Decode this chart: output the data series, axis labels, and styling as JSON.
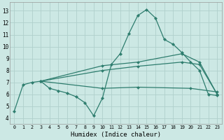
{
  "bg_color": "#cce8e4",
  "grid_color": "#b0d0cc",
  "line_color": "#2e7d6e",
  "xlabel": "Humidex (Indice chaleur)",
  "ylim": [
    3.5,
    13.7
  ],
  "xlim": [
    -0.5,
    23.5
  ],
  "yticks": [
    4,
    5,
    6,
    7,
    8,
    9,
    10,
    11,
    12,
    13
  ],
  "xticks": [
    0,
    1,
    2,
    3,
    4,
    5,
    6,
    7,
    8,
    9,
    10,
    11,
    12,
    13,
    14,
    15,
    16,
    17,
    18,
    19,
    20,
    21,
    22,
    23
  ],
  "lines": [
    {
      "x": [
        0,
        1,
        2,
        3,
        4,
        5,
        6,
        7,
        8,
        9,
        10,
        11,
        12,
        13,
        14,
        15,
        16,
        17,
        18,
        19,
        20,
        21,
        22,
        23
      ],
      "y": [
        4.6,
        6.8,
        7.0,
        7.1,
        6.5,
        6.3,
        6.1,
        5.8,
        5.3,
        4.2,
        5.7,
        8.5,
        9.4,
        11.1,
        12.6,
        13.1,
        12.4,
        10.6,
        10.2,
        9.5,
        8.7,
        8.0,
        6.0,
        5.9
      ]
    },
    {
      "x": [
        3,
        10,
        14,
        19,
        21,
        23
      ],
      "y": [
        7.1,
        8.4,
        8.7,
        9.4,
        8.7,
        6.0
      ]
    },
    {
      "x": [
        3,
        10,
        14,
        19,
        21,
        23
      ],
      "y": [
        7.1,
        8.0,
        8.35,
        8.7,
        8.5,
        6.0
      ]
    },
    {
      "x": [
        3,
        10,
        14,
        20,
        23
      ],
      "y": [
        7.1,
        6.5,
        6.6,
        6.5,
        6.2
      ]
    }
  ]
}
